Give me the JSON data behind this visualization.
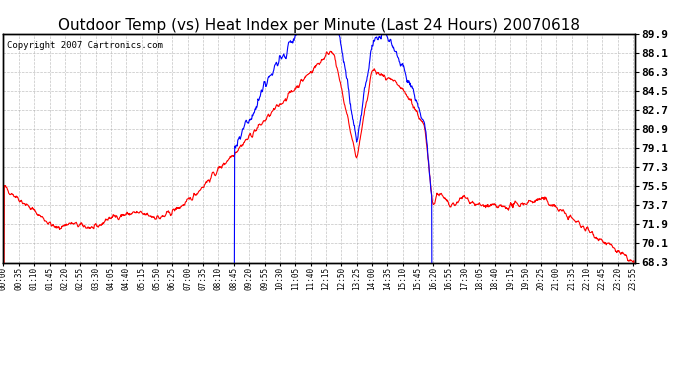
{
  "title": "Outdoor Temp (vs) Heat Index per Minute (Last 24 Hours) 20070618",
  "copyright_text": "Copyright 2007 Cartronics.com",
  "y_ticks": [
    68.3,
    70.1,
    71.9,
    73.7,
    75.5,
    77.3,
    79.1,
    80.9,
    82.7,
    84.5,
    86.3,
    88.1,
    89.9
  ],
  "y_min": 68.3,
  "y_max": 89.9,
  "bg_color": "#ffffff",
  "plot_bg_color": "#ffffff",
  "grid_color": "#aaaaaa",
  "line_color_red": "#ff0000",
  "line_color_blue": "#0000ff",
  "title_fontsize": 11,
  "copyright_fontsize": 6.5,
  "tick_fontsize": 8
}
